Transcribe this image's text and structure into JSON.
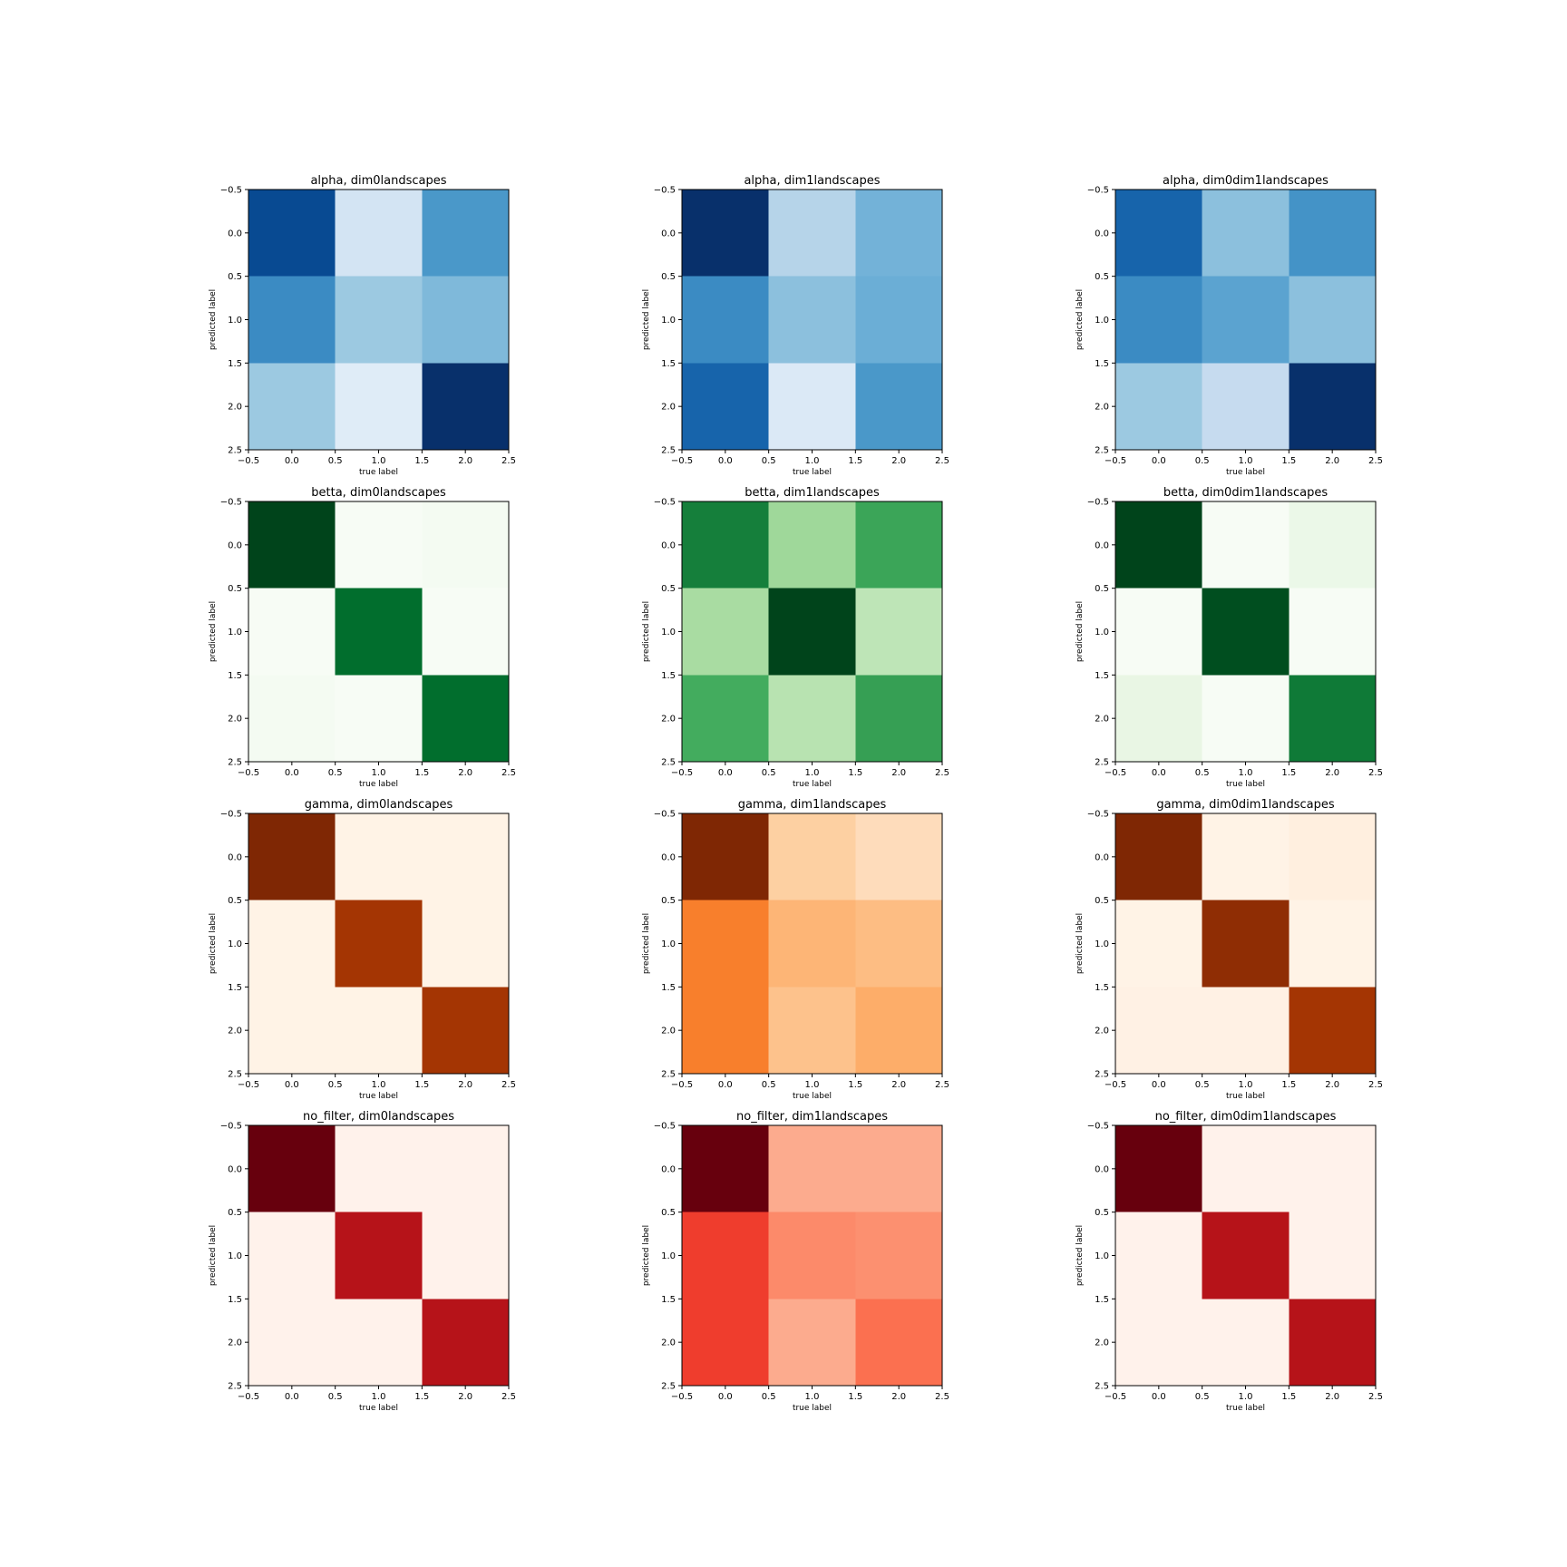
{
  "chart_data": [
    {
      "type": "heatmap",
      "title": "alpha, dim0landscapes",
      "colormap": "Blues",
      "xlabel": "true label",
      "ylabel": "predicted label",
      "xticks": [
        "−0.5",
        "0.0",
        "0.5",
        "1.0",
        "1.5",
        "2.0",
        "2.5"
      ],
      "yticks": [
        "−0.5",
        "0.0",
        "0.5",
        "1.0",
        "1.5",
        "2.0",
        "2.5"
      ],
      "xlim": [
        -0.5,
        2.5
      ],
      "ylim": [
        2.5,
        -0.5
      ],
      "values": [
        [
          0.9,
          0.18,
          0.6
        ],
        [
          0.65,
          0.38,
          0.45
        ],
        [
          0.38,
          0.12,
          1.0
        ]
      ]
    },
    {
      "type": "heatmap",
      "title": "alpha, dim1landscapes",
      "colormap": "Blues",
      "xlabel": "true label",
      "ylabel": "predicted label",
      "xticks": [
        "−0.5",
        "0.0",
        "0.5",
        "1.0",
        "1.5",
        "2.0",
        "2.5"
      ],
      "yticks": [
        "−0.5",
        "0.0",
        "0.5",
        "1.0",
        "1.5",
        "2.0",
        "2.5"
      ],
      "xlim": [
        -0.5,
        2.5
      ],
      "ylim": [
        2.5,
        -0.5
      ],
      "values": [
        [
          1.0,
          0.3,
          0.48
        ],
        [
          0.65,
          0.42,
          0.5
        ],
        [
          0.8,
          0.14,
          0.6
        ]
      ]
    },
    {
      "type": "heatmap",
      "title": "alpha, dim0dim1landscapes",
      "colormap": "Blues",
      "xlabel": "true label",
      "ylabel": "predicted label",
      "xticks": [
        "−0.5",
        "0.0",
        "0.5",
        "1.0",
        "1.5",
        "2.0",
        "2.5"
      ],
      "yticks": [
        "−0.5",
        "0.0",
        "0.5",
        "1.0",
        "1.5",
        "2.0",
        "2.5"
      ],
      "xlim": [
        -0.5,
        2.5
      ],
      "ylim": [
        2.5,
        -0.5
      ],
      "values": [
        [
          0.8,
          0.42,
          0.62
        ],
        [
          0.65,
          0.55,
          0.42
        ],
        [
          0.38,
          0.25,
          1.0
        ]
      ]
    },
    {
      "type": "heatmap",
      "title": "betta, dim0landscapes",
      "colormap": "Greens",
      "xlabel": "true label",
      "ylabel": "predicted label",
      "xticks": [
        "−0.5",
        "0.0",
        "0.5",
        "1.0",
        "1.5",
        "2.0",
        "2.5"
      ],
      "yticks": [
        "−0.5",
        "0.0",
        "0.5",
        "1.0",
        "1.5",
        "2.0",
        "2.5"
      ],
      "xlim": [
        -0.5,
        2.5
      ],
      "ylim": [
        2.5,
        -0.5
      ],
      "values": [
        [
          1.0,
          0.0,
          0.02
        ],
        [
          0.0,
          0.87,
          0.0
        ],
        [
          0.02,
          0.0,
          0.87
        ]
      ]
    },
    {
      "type": "heatmap",
      "title": "betta, dim1landscapes",
      "colormap": "Greens",
      "xlabel": "true label",
      "ylabel": "predicted label",
      "xticks": [
        "−0.5",
        "0.0",
        "0.5",
        "1.0",
        "1.5",
        "2.0",
        "2.5"
      ],
      "yticks": [
        "−0.5",
        "0.0",
        "0.5",
        "1.0",
        "1.5",
        "2.0",
        "2.5"
      ],
      "xlim": [
        -0.5,
        2.5
      ],
      "ylim": [
        2.5,
        -0.5
      ],
      "values": [
        [
          0.8,
          0.38,
          0.65
        ],
        [
          0.35,
          1.0,
          0.28
        ],
        [
          0.62,
          0.3,
          0.67
        ]
      ]
    },
    {
      "type": "heatmap",
      "title": "betta, dim0dim1landscapes",
      "colormap": "Greens",
      "xlabel": "true label",
      "ylabel": "predicted label",
      "xticks": [
        "−0.5",
        "0.0",
        "0.5",
        "1.0",
        "1.5",
        "2.0",
        "2.5"
      ],
      "yticks": [
        "−0.5",
        "0.0",
        "0.5",
        "1.0",
        "1.5",
        "2.0",
        "2.5"
      ],
      "xlim": [
        -0.5,
        2.5
      ],
      "ylim": [
        2.5,
        -0.5
      ],
      "values": [
        [
          1.0,
          0.0,
          0.08
        ],
        [
          0.0,
          0.97,
          0.0
        ],
        [
          0.1,
          0.0,
          0.82
        ]
      ]
    },
    {
      "type": "heatmap",
      "title": "gamma, dim0landscapes",
      "colormap": "Oranges",
      "xlabel": "true label",
      "ylabel": "predicted label",
      "xticks": [
        "−0.5",
        "0.0",
        "0.5",
        "1.0",
        "1.5",
        "2.0",
        "2.5"
      ],
      "yticks": [
        "−0.5",
        "0.0",
        "0.5",
        "1.0",
        "1.5",
        "2.0",
        "2.5"
      ],
      "xlim": [
        -0.5,
        2.5
      ],
      "ylim": [
        2.5,
        -0.5
      ],
      "values": [
        [
          1.0,
          0.02,
          0.02
        ],
        [
          0.02,
          0.88,
          0.02
        ],
        [
          0.02,
          0.02,
          0.88
        ]
      ]
    },
    {
      "type": "heatmap",
      "title": "gamma, dim1landscapes",
      "colormap": "Oranges",
      "xlabel": "true label",
      "ylabel": "predicted label",
      "xticks": [
        "−0.5",
        "0.0",
        "0.5",
        "1.0",
        "1.5",
        "2.0",
        "2.5"
      ],
      "yticks": [
        "−0.5",
        "0.0",
        "0.5",
        "1.0",
        "1.5",
        "2.0",
        "2.5"
      ],
      "xlim": [
        -0.5,
        2.5
      ],
      "ylim": [
        2.5,
        -0.5
      ],
      "values": [
        [
          1.0,
          0.25,
          0.18
        ],
        [
          0.55,
          0.35,
          0.32
        ],
        [
          0.55,
          0.3,
          0.38
        ]
      ]
    },
    {
      "type": "heatmap",
      "title": "gamma, dim0dim1landscapes",
      "colormap": "Oranges",
      "xlabel": "true label",
      "ylabel": "predicted label",
      "xticks": [
        "−0.5",
        "0.0",
        "0.5",
        "1.0",
        "1.5",
        "2.0",
        "2.5"
      ],
      "yticks": [
        "−0.5",
        "0.0",
        "0.5",
        "1.0",
        "1.5",
        "2.0",
        "2.5"
      ],
      "xlim": [
        -0.5,
        2.5
      ],
      "ylim": [
        2.5,
        -0.5
      ],
      "values": [
        [
          1.0,
          0.02,
          0.05
        ],
        [
          0.02,
          0.95,
          0.02
        ],
        [
          0.03,
          0.03,
          0.88
        ]
      ]
    },
    {
      "type": "heatmap",
      "title": "no_filter, dim0landscapes",
      "colormap": "Reds",
      "xlabel": "true label",
      "ylabel": "predicted label",
      "xticks": [
        "−0.5",
        "0.0",
        "0.5",
        "1.0",
        "1.5",
        "2.0",
        "2.5"
      ],
      "yticks": [
        "−0.5",
        "0.0",
        "0.5",
        "1.0",
        "1.5",
        "2.0",
        "2.5"
      ],
      "xlim": [
        -0.5,
        2.5
      ],
      "ylim": [
        2.5,
        -0.5
      ],
      "values": [
        [
          1.0,
          0.02,
          0.02
        ],
        [
          0.02,
          0.82,
          0.02
        ],
        [
          0.02,
          0.02,
          0.82
        ]
      ]
    },
    {
      "type": "heatmap",
      "title": "no_filter, dim1landscapes",
      "colormap": "Reds",
      "xlabel": "true label",
      "ylabel": "predicted label",
      "xticks": [
        "−0.5",
        "0.0",
        "0.5",
        "1.0",
        "1.5",
        "2.0",
        "2.5"
      ],
      "yticks": [
        "−0.5",
        "0.0",
        "0.5",
        "1.0",
        "1.5",
        "2.0",
        "2.5"
      ],
      "xlim": [
        -0.5,
        2.5
      ],
      "ylim": [
        2.5,
        -0.5
      ],
      "values": [
        [
          1.0,
          0.3,
          0.3
        ],
        [
          0.62,
          0.4,
          0.38
        ],
        [
          0.62,
          0.3,
          0.48
        ]
      ]
    },
    {
      "type": "heatmap",
      "title": "no_filter, dim0dim1landscapes",
      "colormap": "Reds",
      "xlabel": "true label",
      "ylabel": "predicted label",
      "xticks": [
        "−0.5",
        "0.0",
        "0.5",
        "1.0",
        "1.5",
        "2.0",
        "2.5"
      ],
      "yticks": [
        "−0.5",
        "0.0",
        "0.5",
        "1.0",
        "1.5",
        "2.0",
        "2.5"
      ],
      "xlim": [
        -0.5,
        2.5
      ],
      "ylim": [
        2.5,
        -0.5
      ],
      "values": [
        [
          1.0,
          0.02,
          0.02
        ],
        [
          0.02,
          0.82,
          0.02
        ],
        [
          0.02,
          0.02,
          0.82
        ]
      ]
    }
  ]
}
